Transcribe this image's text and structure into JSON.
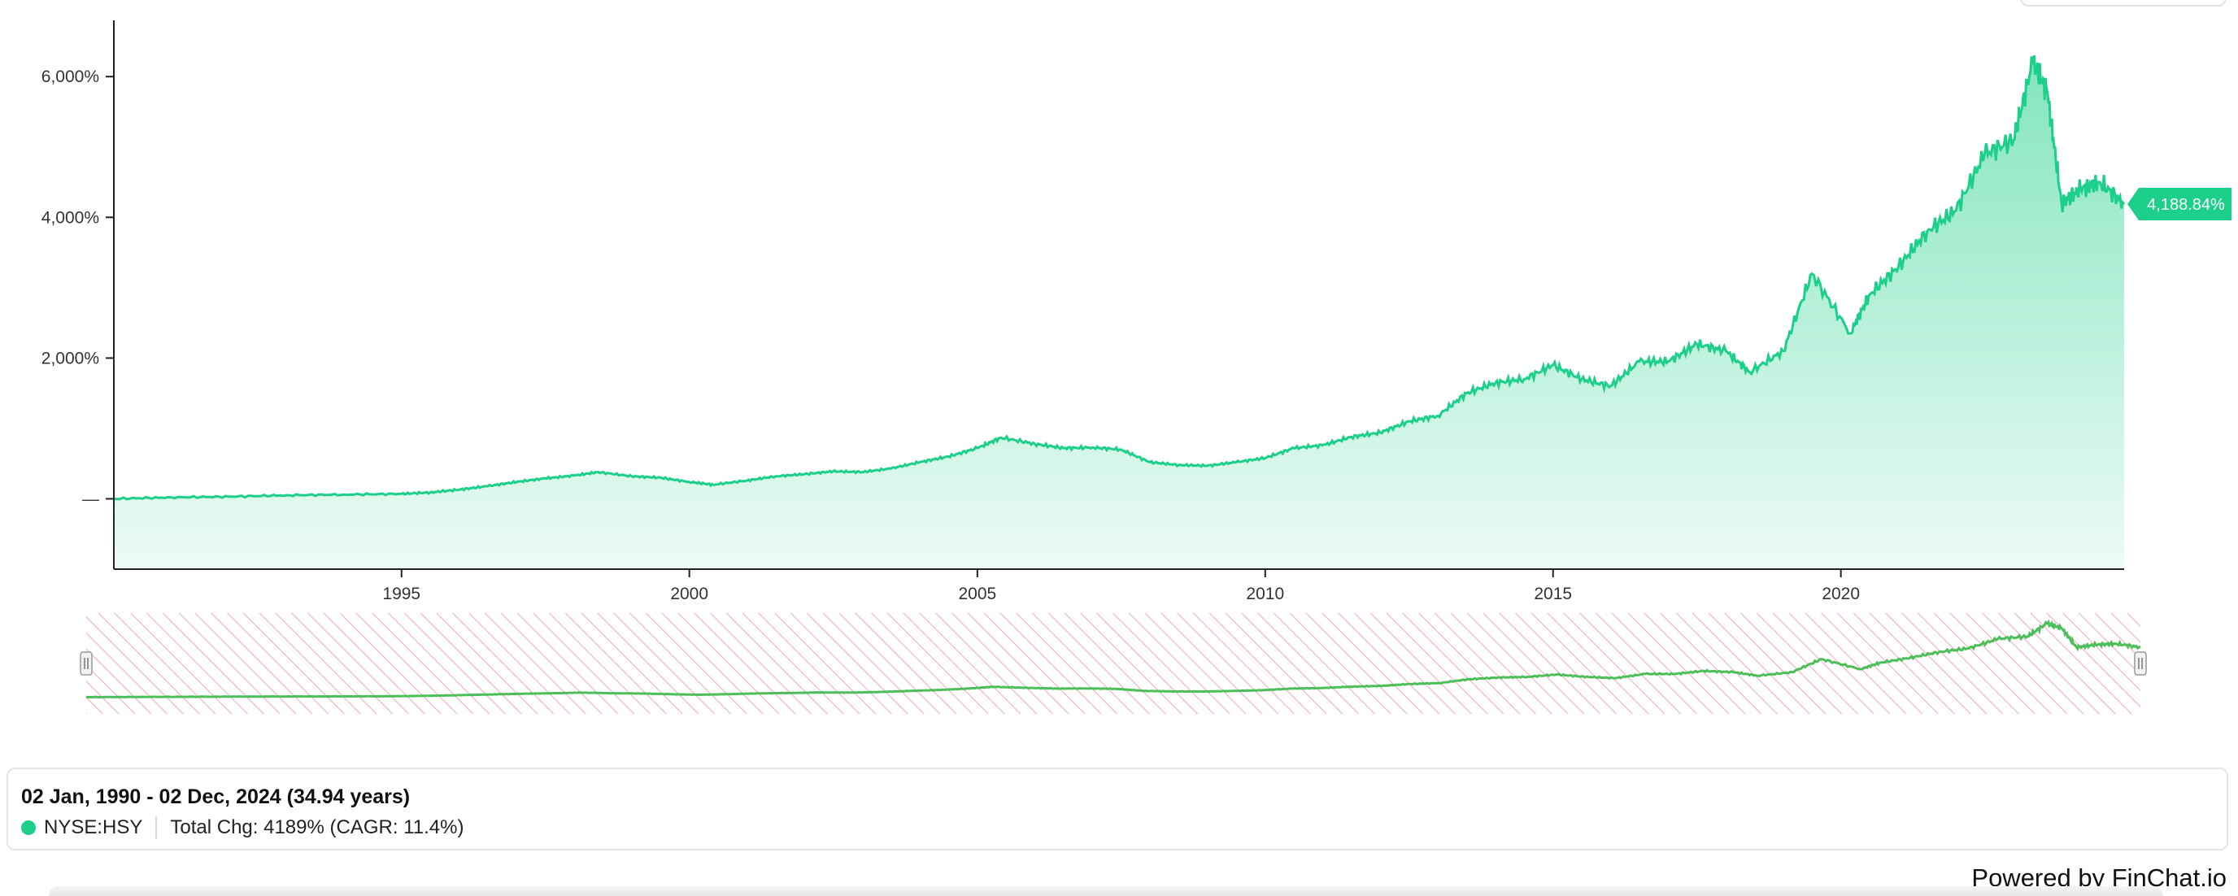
{
  "chart_data": {
    "type": "area",
    "ticker": "NYSE:HSY",
    "y_unit": "percent total change",
    "ylim": [
      -1000,
      6800
    ],
    "y_ticks": [
      {
        "value": 0,
        "label": "—"
      },
      {
        "value": 2000,
        "label": "2,000%"
      },
      {
        "value": 4000,
        "label": "4,000%"
      },
      {
        "value": 6000,
        "label": "6,000%"
      }
    ],
    "x_ticks": [
      "1995",
      "2000",
      "2005",
      "2010",
      "2015",
      "2020"
    ],
    "x_range": [
      "1990-01-02",
      "2024-12-02"
    ],
    "series": [
      {
        "name": "NYSE:HSY",
        "color": "#1ccf8a",
        "points": [
          [
            "1990-01-02",
            0
          ],
          [
            "1991-01-01",
            20
          ],
          [
            "1992-01-01",
            30
          ],
          [
            "1993-01-01",
            50
          ],
          [
            "1994-01-01",
            60
          ],
          [
            "1995-01-01",
            70
          ],
          [
            "1995-07-01",
            90
          ],
          [
            "1996-01-01",
            130
          ],
          [
            "1996-07-01",
            180
          ],
          [
            "1997-01-01",
            240
          ],
          [
            "1997-07-01",
            290
          ],
          [
            "1998-01-01",
            330
          ],
          [
            "1998-06-01",
            380
          ],
          [
            "1999-01-01",
            320
          ],
          [
            "1999-07-01",
            300
          ],
          [
            "2000-01-01",
            240
          ],
          [
            "2000-06-01",
            200
          ],
          [
            "2001-01-01",
            260
          ],
          [
            "2001-07-01",
            320
          ],
          [
            "2002-01-01",
            350
          ],
          [
            "2002-07-01",
            390
          ],
          [
            "2003-01-01",
            380
          ],
          [
            "2003-07-01",
            430
          ],
          [
            "2004-01-01",
            520
          ],
          [
            "2004-07-01",
            600
          ],
          [
            "2005-01-01",
            720
          ],
          [
            "2005-06-01",
            870
          ],
          [
            "2006-01-01",
            780
          ],
          [
            "2006-07-01",
            720
          ],
          [
            "2007-01-01",
            730
          ],
          [
            "2007-07-01",
            700
          ],
          [
            "2008-01-01",
            520
          ],
          [
            "2008-07-01",
            480
          ],
          [
            "2009-01-01",
            470
          ],
          [
            "2009-07-01",
            520
          ],
          [
            "2010-01-01",
            580
          ],
          [
            "2010-07-01",
            720
          ],
          [
            "2011-01-01",
            760
          ],
          [
            "2011-07-01",
            880
          ],
          [
            "2012-01-01",
            940
          ],
          [
            "2012-07-01",
            1100
          ],
          [
            "2013-01-01",
            1180
          ],
          [
            "2013-07-01",
            1500
          ],
          [
            "2014-01-01",
            1650
          ],
          [
            "2014-07-01",
            1700
          ],
          [
            "2015-01-01",
            1900
          ],
          [
            "2015-07-01",
            1700
          ],
          [
            "2016-01-01",
            1600
          ],
          [
            "2016-07-01",
            1950
          ],
          [
            "2017-01-01",
            1950
          ],
          [
            "2017-07-01",
            2200
          ],
          [
            "2018-01-01",
            2100
          ],
          [
            "2018-06-01",
            1800
          ],
          [
            "2019-01-01",
            2100
          ],
          [
            "2019-07-01",
            3200
          ],
          [
            "2020-03-01",
            2350
          ],
          [
            "2020-07-01",
            2900
          ],
          [
            "2021-01-01",
            3300
          ],
          [
            "2021-07-01",
            3800
          ],
          [
            "2022-01-01",
            4100
          ],
          [
            "2022-07-01",
            4900
          ],
          [
            "2023-01-01",
            5100
          ],
          [
            "2023-05-01",
            6200
          ],
          [
            "2023-08-01",
            5800
          ],
          [
            "2023-11-01",
            4200
          ],
          [
            "2024-03-01",
            4400
          ],
          [
            "2024-07-01",
            4500
          ],
          [
            "2024-12-02",
            4188.84
          ]
        ]
      }
    ],
    "last_value_label": "4,188.84%",
    "grid": false,
    "navigator": true
  },
  "summary": {
    "range_text": "02 Jan, 1990 - 02 Dec, 2024 (34.94 years)",
    "ticker": "NYSE:HSY",
    "stats": "Total Chg: 4189% (CAGR: 11.4%)"
  },
  "footer": {
    "powered_by": "Powered by FinChat.io"
  }
}
